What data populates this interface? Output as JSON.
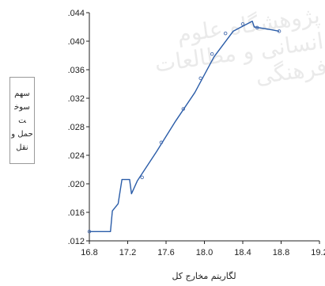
{
  "chart_data": {
    "type": "line",
    "xlabel": "لگاریتم مخارج کل",
    "ylabel": "سهم سوخت حمل و نقل",
    "xlim": [
      16.8,
      19.2
    ],
    "ylim": [
      0.012,
      0.044
    ],
    "x_ticks": [
      "16.8",
      "17.2",
      "17.6",
      "18.0",
      "18.4",
      "18.8",
      "19.2"
    ],
    "y_ticks": [
      ".012",
      ".016",
      ".020",
      ".024",
      ".028",
      ".032",
      ".036",
      ".040",
      ".044"
    ],
    "grid": false,
    "legend": "none",
    "series": [
      {
        "color": "#2a5ca8",
        "x": [
          16.8,
          17.02,
          17.04,
          17.1,
          17.14,
          17.22,
          17.24,
          17.3,
          17.5,
          17.7,
          17.9,
          18.1,
          18.3,
          18.5,
          18.52,
          18.7,
          18.78
        ],
        "y": [
          0.0133,
          0.0133,
          0.0162,
          0.0172,
          0.0206,
          0.0206,
          0.0186,
          0.0204,
          0.0245,
          0.0288,
          0.0328,
          0.0378,
          0.0414,
          0.0428,
          0.042,
          0.0416,
          0.0414
        ]
      },
      {
        "name": "",
        "color": "#4a6fb0",
        "mode": "markers",
        "x": [
          16.8,
          17.35,
          17.55,
          17.78,
          17.96,
          18.08,
          18.22,
          18.4,
          18.55,
          18.78
        ],
        "y": [
          0.0133,
          0.0209,
          0.0258,
          0.0305,
          0.0348,
          0.0382,
          0.0411,
          0.0424,
          0.0419,
          0.0414
        ]
      }
    ]
  },
  "watermark_text": "پژوهشگاه علوم انسانی و مطالعات فرهنگی"
}
